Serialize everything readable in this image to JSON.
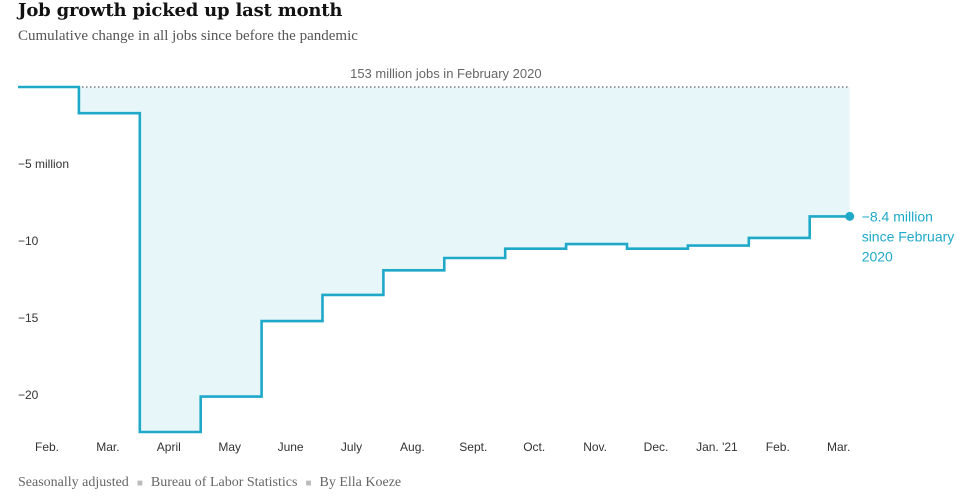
{
  "header": {
    "title": "Job growth picked up last month",
    "subtitle": "Cumulative change in all jobs since before the pandemic"
  },
  "chart_data": {
    "type": "line",
    "title": "Job growth picked up last month",
    "subtitle": "Cumulative change in all jobs since before the pandemic",
    "step": true,
    "categories": [
      "Feb.",
      "Mar.",
      "April",
      "May",
      "June",
      "July",
      "Aug.",
      "Sept.",
      "Oct.",
      "Nov.",
      "Dec.",
      "Jan. '21",
      "Feb.",
      "Mar."
    ],
    "series": [
      {
        "values": [
          0,
          -1.7,
          -22.4,
          -20.1,
          -15.2,
          -13.5,
          -11.9,
          -11.1,
          -10.5,
          -10.2,
          -10.5,
          -10.3,
          -9.8,
          -8.4
        ],
        "color": "#1fa9c9"
      }
    ],
    "y_ticks": [
      {
        "value": -5,
        "label": "−5 million"
      },
      {
        "value": -10,
        "label": "−10"
      },
      {
        "value": -15,
        "label": "−15"
      },
      {
        "value": -20,
        "label": "−20"
      }
    ],
    "ylim": [
      -22.4,
      0
    ],
    "baseline_label": "153 million jobs in February 2020",
    "end_label": [
      "−8.4 million",
      "since February",
      "2020"
    ],
    "fill_color": "#e6f6f9",
    "line_color": "#1fa9c9",
    "grid": false
  },
  "footer": {
    "note": "Seasonally adjusted",
    "source": "Bureau of Labor Statistics",
    "byline": "By Ella Koeze"
  }
}
